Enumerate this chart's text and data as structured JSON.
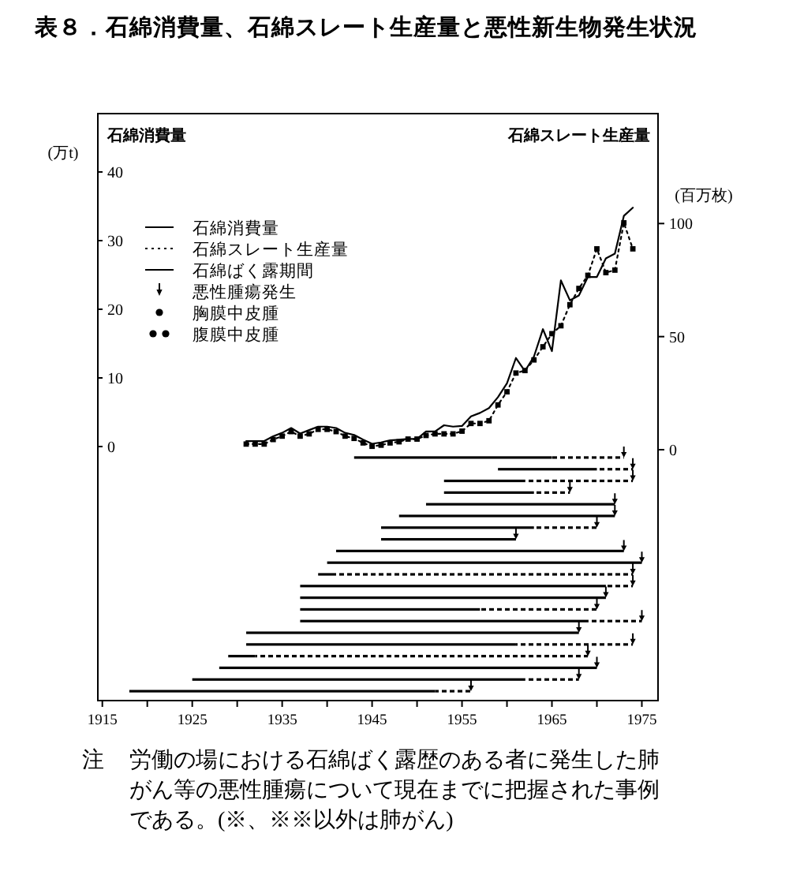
{
  "chart_data": [
    {
      "type": "line",
      "title": "表８．石綿消費量、石綿スレート生産量と悪性新生物発生状況",
      "ylabel": "(万t)",
      "y2label": "(百万枚)",
      "x": [
        1931,
        1932,
        1933,
        1934,
        1935,
        1936,
        1937,
        1938,
        1939,
        1940,
        1941,
        1942,
        1943,
        1944,
        1945,
        1946,
        1947,
        1948,
        1949,
        1950,
        1951,
        1952,
        1953,
        1954,
        1955,
        1956,
        1957,
        1958,
        1959,
        1960,
        1961,
        1962,
        1963,
        1964,
        1965,
        1966,
        1967,
        1968,
        1969,
        1970,
        1971,
        1972,
        1973,
        1974
      ],
      "series": [
        {
          "name": "石綿消費量",
          "color": "#000000",
          "line_style": "solid",
          "values": [
            0.8,
            0.8,
            0.8,
            1.5,
            2.0,
            2.7,
            1.9,
            2.4,
            2.9,
            2.9,
            2.7,
            2.0,
            1.7,
            1.0,
            0.4,
            0.6,
            0.9,
            1.0,
            1.1,
            1.1,
            2.2,
            2.2,
            3.1,
            2.9,
            3.0,
            4.4,
            4.9,
            5.6,
            7.2,
            9.2,
            12.9,
            11.0,
            13.1,
            17.1,
            13.9,
            24.2,
            21.3,
            22.0,
            24.7,
            24.7,
            27.4,
            28.1,
            33.6,
            34.8
          ]
        },
        {
          "name": "石綿スレート生産量",
          "color": "#000000",
          "line_style": "dotted",
          "marker": "square",
          "axis": "y2",
          "values": [
            2.5,
            2.5,
            2.5,
            4.5,
            6,
            8,
            6,
            7,
            9,
            9,
            8,
            6,
            5,
            3,
            1.5,
            2,
            3,
            3.5,
            4.7,
            4.7,
            6.3,
            7,
            7,
            7,
            8.2,
            11.6,
            11.6,
            12.8,
            19.8,
            25.6,
            33.9,
            35,
            39.7,
            45.5,
            51.3,
            54.8,
            64.1,
            71.3,
            77.1,
            88.8,
            78.3,
            79.4,
            100.3,
            88.8
          ]
        }
      ],
      "xlim": [
        1914.5,
        1976.8
      ],
      "ylim": [
        0,
        48.5
      ],
      "yticks": [
        0,
        10,
        20,
        30,
        40
      ],
      "y2lim": [
        0,
        148.6
      ],
      "y2ticks": [
        0,
        50,
        100
      ],
      "legend": "top left",
      "annotations": [
        "石綿消費量",
        "石綿スレート生産量",
        "悪性腫瘍発生",
        "胸膜中皮腫",
        "腹膜中皮腫",
        "注 労働の場における石綿ばく露歴のある者に発生した肺がん等の悪性腫瘍について現在までに把握された事例である。(※、※※以外は肺がん)"
      ]
    },
    {
      "type": "bar",
      "orientation": "horizontal",
      "tick_labels": "x",
      "categories": [
        null,
        null,
        null,
        null,
        null,
        null,
        null,
        null,
        null,
        null,
        null,
        null,
        null,
        null,
        null,
        null,
        null,
        null,
        null,
        null,
        null
      ],
      "series": [
        {
          "name": "石綿ばく露期間",
          "color": "#000000",
          "line_style": "solid",
          "base": [
            1943,
            1959,
            1953,
            1953,
            1951,
            1948,
            1946,
            1946,
            1941,
            1940,
            1939,
            1937,
            1937,
            1937,
            1937,
            1931,
            1931,
            1929,
            1928,
            1925,
            1918
          ],
          "values": [
            22,
            11,
            9,
            10,
            21,
            24,
            17,
            15,
            32,
            35,
            2,
            34,
            34,
            20,
            32,
            37,
            30,
            3,
            42,
            37,
            34
          ]
        },
        {
          "color": "#000000",
          "line_style": "dashed",
          "base": [
            1965,
            1970,
            1962,
            1963,
            null,
            null,
            1963,
            null,
            null,
            null,
            1941,
            1971,
            null,
            1957,
            1969,
            null,
            1961,
            1932,
            null,
            1962,
            1952
          ],
          "values": [
            8,
            4,
            12,
            4,
            null,
            null,
            7,
            null,
            null,
            null,
            33,
            3,
            null,
            13,
            6,
            null,
            13,
            37,
            null,
            6,
            4
          ]
        }
      ],
      "xlim": [
        1914.5,
        1976.8
      ],
      "xticks": [
        1915,
        {
          "value": 1920,
          "label": null
        },
        1925,
        {
          "value": 1930,
          "label": null
        },
        1935,
        {
          "value": 1940,
          "label": null
        },
        1945,
        {
          "value": 1950,
          "label": null
        },
        1955,
        {
          "value": 1960,
          "label": null
        },
        1965,
        {
          "value": 1970,
          "label": null
        },
        1975
      ]
    }
  ]
}
